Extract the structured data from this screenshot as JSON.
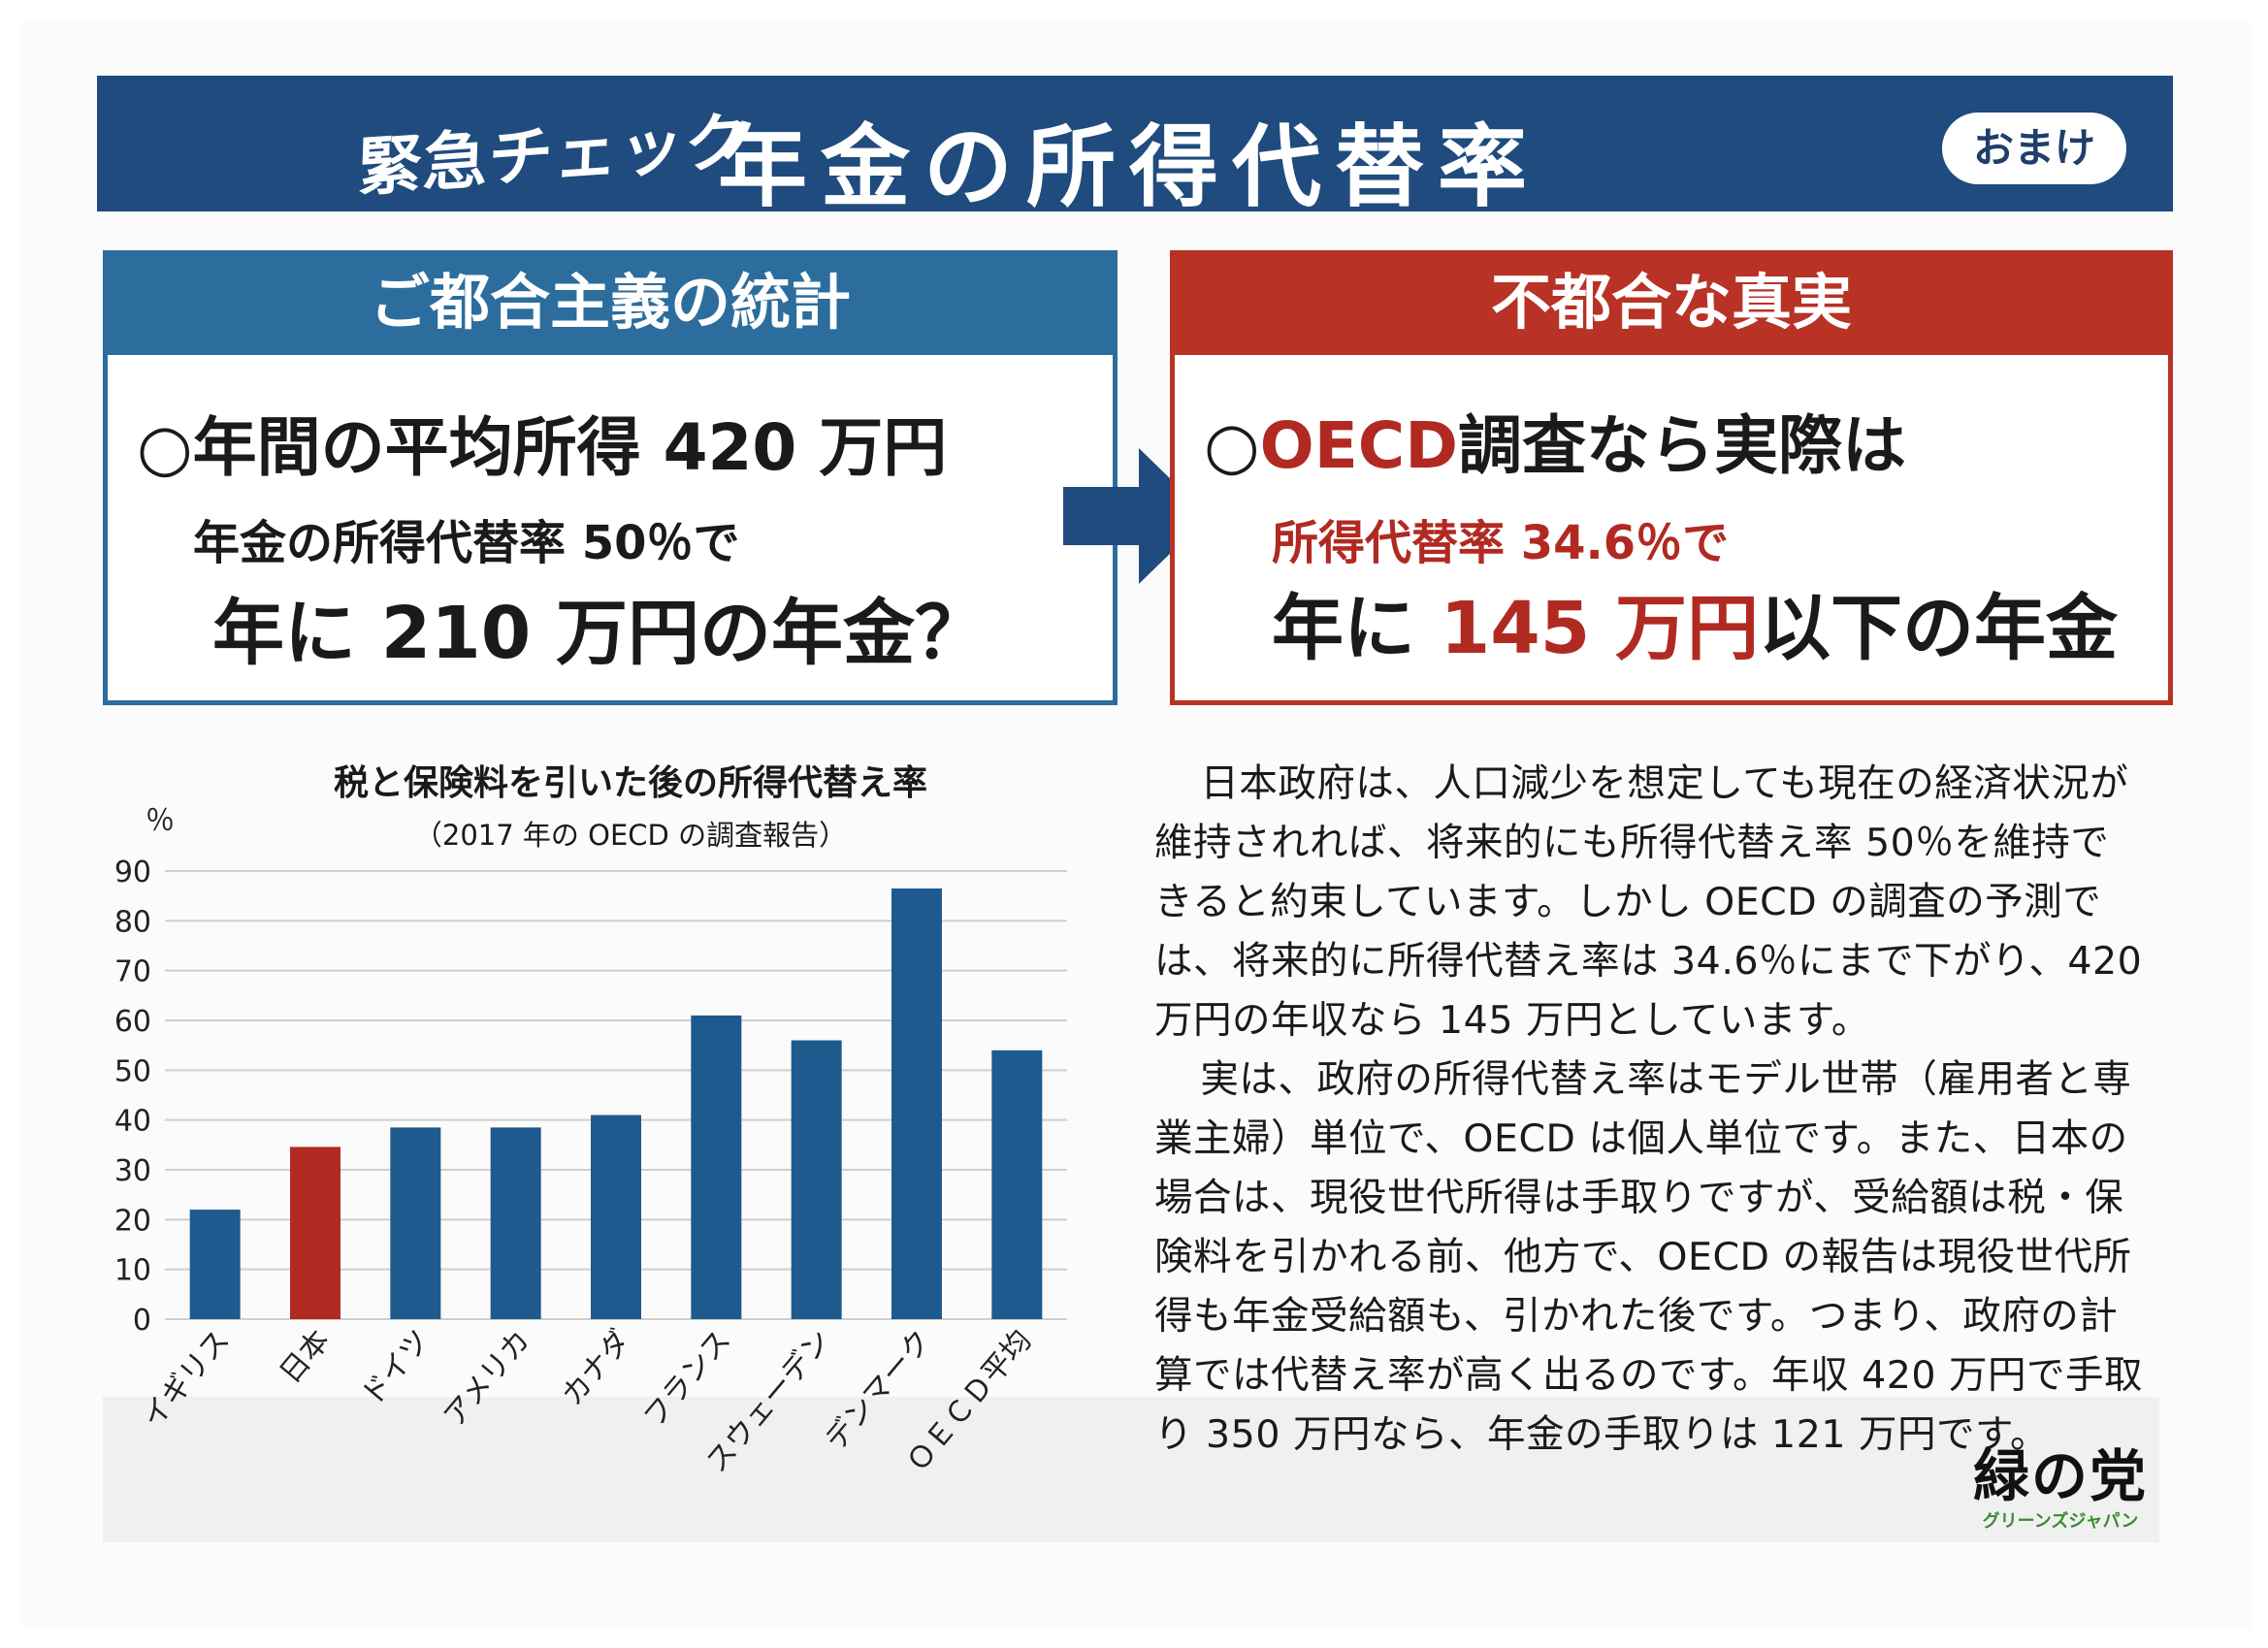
{
  "header": {
    "check_label": "緊急チェック",
    "title": "年金の所得代替率",
    "badge": "おまけ"
  },
  "left_panel": {
    "heading": "ご都合主義の統計",
    "line1": "○年間の平均所得 420 万円",
    "line2": "年金の所得代替率 50％で",
    "line3": "年に 210 万円の年金？"
  },
  "right_panel": {
    "heading": "不都合な真実",
    "line1_prefix": "○",
    "line1_red": "OECD",
    "line1_rest": "調査なら実際は",
    "line2": "所得代替率 34.6％で",
    "line3_a": "年に",
    "line3_red": "145 万円",
    "line3_b": "以下の年金"
  },
  "chart_data": {
    "type": "bar",
    "title": "税と保険料を引いた後の所得代替え率",
    "subtitle": "（2017 年の OECD の調査報告）",
    "ylabel": "％",
    "ylim": [
      0,
      90
    ],
    "yticks": [
      "0",
      "10",
      "20",
      "30",
      "40",
      "50",
      "60",
      "70",
      "80",
      "90"
    ],
    "categories": [
      "イギリス",
      "日本",
      "ドイツ",
      "アメリカ",
      "カナダ",
      "フランス",
      "スウェーデン",
      "デンマーク",
      "ＯＥＣＤ平均"
    ],
    "values": [
      22,
      34.6,
      38.5,
      38.5,
      41,
      61,
      56,
      86.5,
      54
    ],
    "highlight_index": 1,
    "grid": true,
    "legend": "none"
  },
  "colors": {
    "navy": "#1f4b7e",
    "blue": "#2c6d9d",
    "red": "#b83226",
    "bar": "#1f5a8e",
    "bar_highlight": "#b12a22"
  },
  "body": {
    "paragraph1": "日本政府は、人口減少を想定しても現在の経済状況が維持されれば、将来的にも所得代替え率 50％を維持できると約束しています。しかし OECD の調査の予測では、将来的に所得代替え率は 34.6％にまで下がり、420 万円の年収なら 145 万円としています。",
    "paragraph2": "実は、政府の所得代替え率はモデル世帯（雇用者と専業主婦）単位で、OECD は個人単位です。また、日本の場合は、現役世代所得は手取りですが、受給額は税・保険料を引かれる前、他方で、OECD の報告は現役世代所得も年金受給額も、引かれた後です。つまり、政府の計算では代替え率が高く出るのです。年収 420 万円で手取り 350 万円なら、年金の手取りは 121 万円です。"
  },
  "logo": {
    "main": "緑の党",
    "sub": "グリーンズジャパン"
  }
}
